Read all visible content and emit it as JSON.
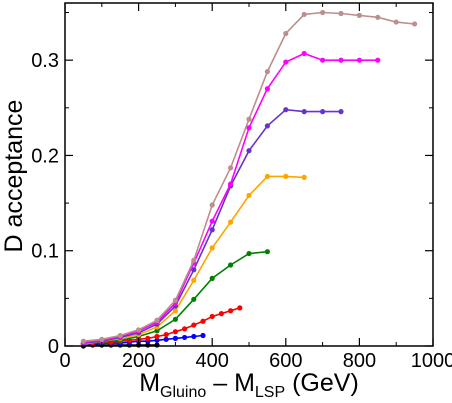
{
  "chart_data": {
    "type": "line",
    "title": "",
    "ylabel": "D  acceptance",
    "xlabel": {
      "parts": [
        {
          "text": "M",
          "sub": false
        },
        {
          "text": "Gluino",
          "sub": true
        },
        {
          "text": " – M",
          "sub": false
        },
        {
          "text": "LSP",
          "sub": true
        },
        {
          "text": "  (GeV)",
          "sub": false
        }
      ]
    },
    "xlim": [
      0,
      1000
    ],
    "ylim": [
      0,
      0.36
    ],
    "x_ticks": [
      0,
      200,
      400,
      600,
      800,
      1000
    ],
    "x_tick_labels": [
      "0",
      "200",
      "400",
      "600",
      "800",
      "1000"
    ],
    "y_ticks": [
      0,
      0.1,
      0.2,
      0.3
    ],
    "y_tick_labels": [
      "0",
      "0.1",
      "0.2",
      "0.3"
    ],
    "grid": false,
    "legend": "none",
    "series": [
      {
        "color": "#000000",
        "x": [
          50,
          75,
          100,
          125,
          150,
          175,
          200,
          225,
          250
        ],
        "y": [
          0.0,
          0.001,
          0.001,
          0.001,
          0.001,
          0.001,
          0.001,
          0.001,
          0.001
        ]
      },
      {
        "color": "#0000ff",
        "x": [
          50,
          75,
          100,
          125,
          150,
          175,
          200,
          225,
          250,
          275,
          300,
          325,
          350,
          375
        ],
        "y": [
          0.002,
          0.002,
          0.003,
          0.003,
          0.003,
          0.004,
          0.005,
          0.005,
          0.006,
          0.007,
          0.008,
          0.009,
          0.01,
          0.011
        ]
      },
      {
        "color": "#ff0000",
        "x": [
          50,
          75,
          100,
          125,
          150,
          175,
          200,
          225,
          250,
          275,
          300,
          325,
          350,
          375,
          400,
          425,
          450,
          475
        ],
        "y": [
          0.002,
          0.003,
          0.004,
          0.004,
          0.005,
          0.006,
          0.007,
          0.008,
          0.01,
          0.012,
          0.015,
          0.018,
          0.022,
          0.026,
          0.031,
          0.034,
          0.037,
          0.04
        ]
      },
      {
        "color": "#008000",
        "x": [
          50,
          100,
          150,
          200,
          250,
          300,
          350,
          400,
          450,
          500,
          550
        ],
        "y": [
          0.002,
          0.004,
          0.006,
          0.01,
          0.016,
          0.028,
          0.049,
          0.071,
          0.085,
          0.097,
          0.099
        ]
      },
      {
        "color": "#ffa500",
        "x": [
          50,
          100,
          150,
          200,
          250,
          300,
          350,
          400,
          450,
          500,
          550,
          600,
          650
        ],
        "y": [
          0.002,
          0.005,
          0.008,
          0.012,
          0.02,
          0.037,
          0.069,
          0.103,
          0.13,
          0.158,
          0.178,
          0.178,
          0.177
        ]
      },
      {
        "color": "#6633cc",
        "x": [
          50,
          100,
          150,
          200,
          250,
          300,
          350,
          400,
          450,
          500,
          550,
          600,
          650,
          700,
          750
        ],
        "y": [
          0.003,
          0.005,
          0.009,
          0.014,
          0.023,
          0.042,
          0.08,
          0.122,
          0.168,
          0.205,
          0.231,
          0.248,
          0.246,
          0.246,
          0.246
        ]
      },
      {
        "color": "#ff00ff",
        "x": [
          50,
          100,
          150,
          200,
          250,
          300,
          350,
          400,
          450,
          500,
          550,
          600,
          650,
          700,
          750,
          800,
          850
        ],
        "y": [
          0.004,
          0.006,
          0.01,
          0.016,
          0.025,
          0.045,
          0.087,
          0.131,
          0.17,
          0.229,
          0.27,
          0.298,
          0.307,
          0.3,
          0.3,
          0.3,
          0.3
        ]
      },
      {
        "color": "#bc8f8f",
        "x": [
          50,
          100,
          150,
          200,
          250,
          300,
          350,
          400,
          450,
          500,
          550,
          600,
          650,
          700,
          750,
          800,
          850,
          900,
          950
        ],
        "y": [
          0.005,
          0.007,
          0.011,
          0.017,
          0.027,
          0.048,
          0.09,
          0.148,
          0.187,
          0.238,
          0.288,
          0.328,
          0.348,
          0.35,
          0.349,
          0.347,
          0.345,
          0.34,
          0.338
        ]
      }
    ]
  }
}
